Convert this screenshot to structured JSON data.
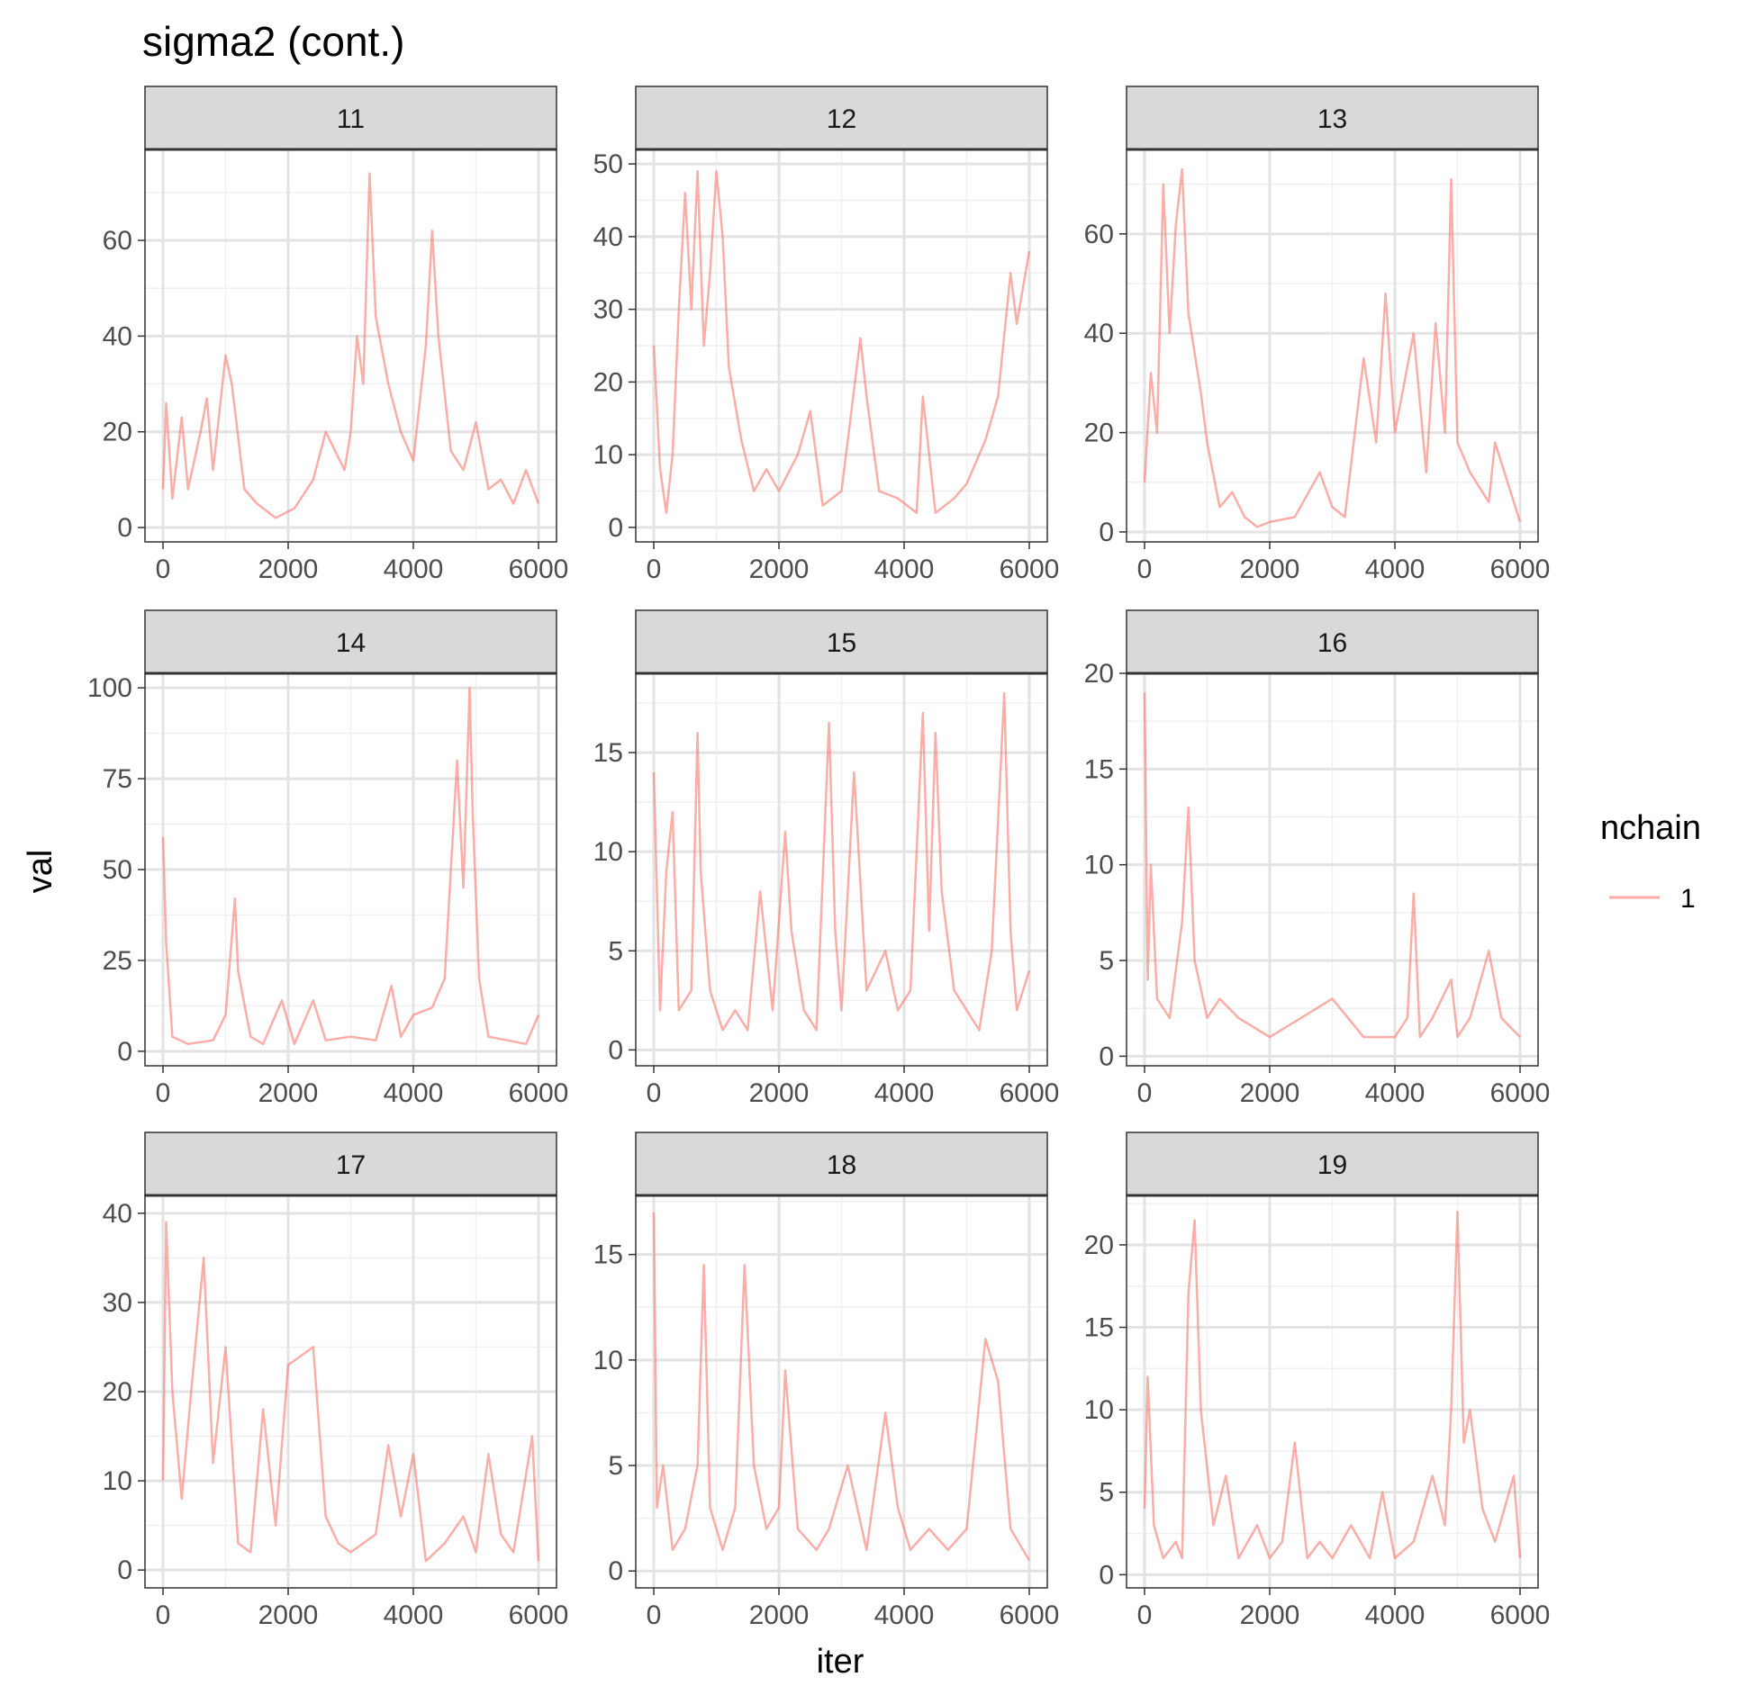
{
  "chart_data": {
    "type": "line",
    "title": "sigma2 (cont.)",
    "xlabel": "iter",
    "ylabel": "val",
    "legend": {
      "title": "nchain",
      "placement": "right",
      "entries": [
        {
          "label": "1",
          "color": "#F8766D"
        }
      ]
    },
    "x_range": [
      0,
      6000
    ],
    "x_ticks": [
      0,
      2000,
      4000,
      6000
    ],
    "grid": true,
    "line_alpha": 0.6,
    "series_color": "#F8766D",
    "panels": [
      {
        "label": "11",
        "ylim": [
          -3,
          79
        ],
        "y_ticks": [
          0,
          20,
          40,
          60
        ],
        "x": [
          0,
          50,
          150,
          300,
          400,
          600,
          700,
          800,
          1000,
          1100,
          1300,
          1500,
          1800,
          2100,
          2400,
          2600,
          2900,
          3000,
          3100,
          3200,
          3300,
          3400,
          3600,
          3800,
          4000,
          4200,
          4300,
          4400,
          4600,
          4800,
          5000,
          5200,
          5400,
          5600,
          5800,
          6000
        ],
        "values": [
          8,
          26,
          6,
          23,
          8,
          20,
          27,
          12,
          36,
          30,
          8,
          5,
          2,
          4,
          10,
          20,
          12,
          20,
          40,
          30,
          74,
          44,
          30,
          20,
          14,
          38,
          62,
          40,
          16,
          12,
          22,
          8,
          10,
          5,
          12,
          5
        ]
      },
      {
        "label": "12",
        "ylim": [
          -2,
          52
        ],
        "y_ticks": [
          0,
          10,
          20,
          30,
          40,
          50
        ],
        "x": [
          0,
          100,
          200,
          300,
          400,
          500,
          600,
          700,
          800,
          900,
          1000,
          1100,
          1200,
          1400,
          1600,
          1800,
          2000,
          2300,
          2500,
          2700,
          3000,
          3300,
          3400,
          3600,
          3900,
          4200,
          4300,
          4500,
          4800,
          5000,
          5300,
          5500,
          5700,
          5800,
          6000
        ],
        "values": [
          25,
          8,
          2,
          10,
          30,
          46,
          30,
          49,
          25,
          35,
          49,
          40,
          22,
          12,
          5,
          8,
          5,
          10,
          16,
          3,
          5,
          26,
          18,
          5,
          4,
          2,
          18,
          2,
          4,
          6,
          12,
          18,
          35,
          28,
          38
        ]
      },
      {
        "label": "13",
        "ylim": [
          -2,
          77
        ],
        "y_ticks": [
          0,
          20,
          40,
          60
        ],
        "x": [
          0,
          100,
          200,
          300,
          400,
          500,
          600,
          700,
          800,
          900,
          1000,
          1200,
          1400,
          1600,
          1800,
          2000,
          2400,
          2800,
          3000,
          3200,
          3500,
          3700,
          3850,
          4000,
          4300,
          4500,
          4650,
          4800,
          4900,
          5000,
          5200,
          5500,
          5600,
          6000
        ],
        "values": [
          10,
          32,
          20,
          70,
          40,
          62,
          73,
          44,
          36,
          28,
          18,
          5,
          8,
          3,
          1,
          2,
          3,
          12,
          5,
          3,
          35,
          18,
          48,
          20,
          40,
          12,
          42,
          20,
          71,
          18,
          12,
          6,
          18,
          2
        ]
      },
      {
        "label": "14",
        "ylim": [
          -4,
          104
        ],
        "y_ticks": [
          0,
          25,
          50,
          75,
          100
        ],
        "x": [
          0,
          50,
          150,
          400,
          800,
          1000,
          1150,
          1200,
          1400,
          1600,
          1900,
          2100,
          2400,
          2600,
          3000,
          3400,
          3650,
          3800,
          4000,
          4300,
          4500,
          4700,
          4800,
          4900,
          4950,
          5050,
          5200,
          5500,
          5800,
          6000
        ],
        "values": [
          59,
          30,
          4,
          2,
          3,
          10,
          42,
          22,
          4,
          2,
          14,
          2,
          14,
          3,
          4,
          3,
          18,
          4,
          10,
          12,
          20,
          80,
          45,
          100,
          65,
          20,
          4,
          3,
          2,
          10
        ]
      },
      {
        "label": "15",
        "ylim": [
          -0.8,
          19
        ],
        "y_ticks": [
          0,
          5,
          10,
          15
        ],
        "x": [
          0,
          100,
          200,
          300,
          400,
          600,
          700,
          750,
          900,
          1100,
          1300,
          1500,
          1700,
          1900,
          2100,
          2200,
          2400,
          2600,
          2800,
          2900,
          3000,
          3200,
          3400,
          3700,
          3900,
          4100,
          4300,
          4400,
          4500,
          4600,
          4800,
          5000,
          5200,
          5400,
          5600,
          5700,
          5800,
          6000
        ],
        "values": [
          14,
          2,
          9,
          12,
          2,
          3,
          16,
          9,
          3,
          1,
          2,
          1,
          8,
          2,
          11,
          6,
          2,
          1,
          16.5,
          6,
          2,
          14,
          3,
          5,
          2,
          3,
          17,
          6,
          16,
          8,
          3,
          2,
          1,
          5,
          18,
          6,
          2,
          4
        ]
      },
      {
        "label": "16",
        "ylim": [
          -0.5,
          20
        ],
        "y_ticks": [
          0,
          5,
          10,
          15,
          20
        ],
        "x": [
          0,
          50,
          100,
          200,
          400,
          600,
          700,
          800,
          1000,
          1200,
          1500,
          2000,
          2500,
          3000,
          3500,
          4000,
          4200,
          4300,
          4400,
          4600,
          4900,
          5000,
          5200,
          5500,
          5700,
          6000
        ],
        "values": [
          19,
          4,
          10,
          3,
          2,
          7,
          13,
          5,
          2,
          3,
          2,
          1,
          2,
          3,
          1,
          1,
          2,
          8.5,
          1,
          2,
          4,
          1,
          2,
          5.5,
          2,
          1
        ]
      },
      {
        "label": "17",
        "ylim": [
          -2,
          42
        ],
        "y_ticks": [
          0,
          10,
          20,
          30,
          40
        ],
        "x": [
          0,
          50,
          150,
          300,
          450,
          650,
          800,
          1000,
          1200,
          1400,
          1600,
          1800,
          2000,
          2200,
          2400,
          2600,
          2800,
          3000,
          3400,
          3600,
          3800,
          4000,
          4200,
          4500,
          4800,
          5000,
          5200,
          5400,
          5600,
          5900,
          6000
        ],
        "values": [
          10,
          39,
          20,
          8,
          20,
          35,
          12,
          25,
          3,
          2,
          18,
          5,
          23,
          24,
          25,
          6,
          3,
          2,
          4,
          14,
          6,
          13,
          1,
          3,
          6,
          2,
          13,
          4,
          2,
          15,
          1
        ]
      },
      {
        "label": "18",
        "ylim": [
          -0.8,
          17.8
        ],
        "y_ticks": [
          0,
          5,
          10,
          15
        ],
        "x": [
          0,
          50,
          150,
          300,
          500,
          700,
          800,
          900,
          1100,
          1300,
          1450,
          1600,
          1800,
          2000,
          2100,
          2300,
          2600,
          2800,
          3100,
          3400,
          3700,
          3900,
          4100,
          4400,
          4700,
          5000,
          5300,
          5500,
          5700,
          6000
        ],
        "values": [
          17,
          3,
          5,
          1,
          2,
          5,
          14.5,
          3,
          1,
          3,
          14.5,
          5,
          2,
          3,
          9.5,
          2,
          1,
          2,
          5,
          1,
          7.5,
          3,
          1,
          2,
          1,
          2,
          11,
          9,
          2,
          0.5
        ]
      },
      {
        "label": "19",
        "ylim": [
          -0.8,
          23
        ],
        "y_ticks": [
          0,
          5,
          10,
          15,
          20
        ],
        "x": [
          0,
          50,
          150,
          300,
          500,
          600,
          700,
          800,
          900,
          1100,
          1300,
          1500,
          1800,
          2000,
          2200,
          2400,
          2600,
          2800,
          3000,
          3300,
          3600,
          3800,
          4000,
          4300,
          4600,
          4800,
          4900,
          5000,
          5100,
          5200,
          5400,
          5600,
          5900,
          6000
        ],
        "values": [
          4,
          12,
          3,
          1,
          2,
          1,
          17,
          21.5,
          10,
          3,
          6,
          1,
          3,
          1,
          2,
          8,
          1,
          2,
          1,
          3,
          1,
          5,
          1,
          2,
          6,
          3,
          10,
          22,
          8,
          10,
          4,
          2,
          6,
          1
        ]
      }
    ]
  }
}
